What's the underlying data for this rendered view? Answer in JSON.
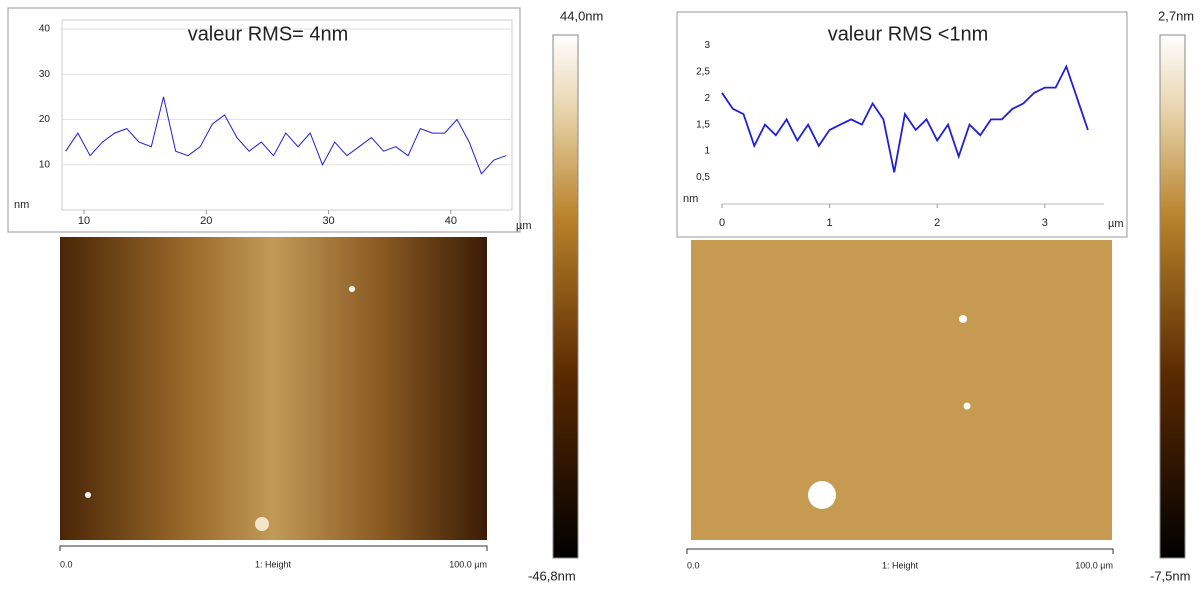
{
  "chart_data": [
    {
      "type": "line",
      "title": "valeur RMS= 4nm",
      "y_unit": "nm",
      "x_unit": "µm",
      "x": [
        8.5,
        9.5,
        10.5,
        11.5,
        12.5,
        13.5,
        14.5,
        15.5,
        16.5,
        17.5,
        18.5,
        19.5,
        20.5,
        21.5,
        22.5,
        23.5,
        24.5,
        25.5,
        26.5,
        27.5,
        28.5,
        29.5,
        30.5,
        31.5,
        32.5,
        33.5,
        34.5,
        35.5,
        36.5,
        37.5,
        38.5,
        39.5,
        40.5,
        41.5,
        42.5,
        43.5,
        44.5
      ],
      "series": [
        {
          "color": "#1f1fd8",
          "values": [
            13,
            17,
            12,
            15,
            17,
            18,
            15,
            14,
            25,
            13,
            12,
            14,
            19,
            21,
            16,
            13,
            15,
            12,
            17,
            14,
            17,
            10,
            15,
            12,
            14,
            16,
            13,
            14,
            12,
            18,
            17,
            17,
            20,
            15,
            8,
            11,
            12
          ]
        }
      ],
      "xlim": [
        8.2,
        45
      ],
      "xticks": [
        10,
        20,
        30,
        40
      ],
      "ylim": [
        0,
        42
      ],
      "yticks": [
        10,
        20,
        30,
        40
      ],
      "grid": true
    },
    {
      "type": "line",
      "title": "valeur RMS <1nm",
      "y_unit": "nm",
      "x_unit": "µm",
      "x": [
        0,
        0.1,
        0.2,
        0.3,
        0.4,
        0.5,
        0.6,
        0.7,
        0.8,
        0.9,
        1,
        1.1,
        1.2,
        1.3,
        1.4,
        1.5,
        1.6,
        1.7,
        1.8,
        1.9,
        2,
        2.1,
        2.2,
        2.3,
        2.4,
        2.5,
        2.6,
        2.7,
        2.8,
        2.9,
        3,
        3.1,
        3.2,
        3.3,
        3.4
      ],
      "series": [
        {
          "color": "#1f1fd8",
          "values": [
            2.1,
            1.8,
            1.7,
            1.1,
            1.5,
            1.3,
            1.6,
            1.2,
            1.5,
            1.1,
            1.4,
            1.5,
            1.6,
            1.5,
            1.9,
            1.6,
            0.6,
            1.7,
            1.4,
            1.6,
            1.2,
            1.5,
            0.9,
            1.5,
            1.3,
            1.6,
            1.6,
            1.8,
            1.9,
            2.1,
            2.2,
            2.2,
            2.6,
            2.0,
            1.4
          ]
        }
      ],
      "xlim": [
        0,
        3.55
      ],
      "xticks": [
        0,
        1,
        2,
        3
      ],
      "ylim": [
        0,
        3.1
      ],
      "yticks": [
        {
          "value": 0.5,
          "label": "0,5"
        },
        1,
        {
          "value": 1.5,
          "label": "1,5"
        },
        2,
        {
          "value": 2.5,
          "label": "2,5"
        },
        3
      ],
      "grid": false
    }
  ],
  "images": [
    {
      "colorbar_max": "44,0nm",
      "colorbar_min": "-46,8nm",
      "scale_start": "0.0",
      "scale_label": "1: Height",
      "scale_end": "100.0 µm"
    },
    {
      "colorbar_max": "2,7nm",
      "colorbar_min": "-7,5nm",
      "scale_start": "0.0",
      "scale_label": "1: Height",
      "scale_end": "100.0 µm"
    }
  ]
}
